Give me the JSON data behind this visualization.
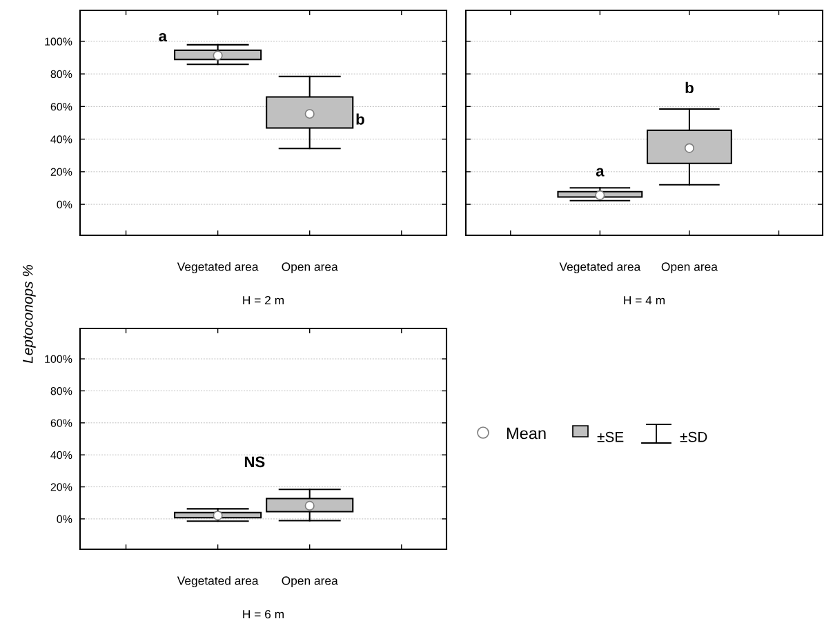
{
  "chart_data": [
    {
      "type": "box",
      "ylabel": "Leptoconops %",
      "xlabel": "H = 2 m",
      "categories": [
        "Vegetated area",
        "Open area"
      ],
      "ylim": [
        -19,
        119
      ],
      "yticks": [
        {
          "value": 0,
          "label": "0%"
        },
        {
          "value": 20,
          "label": "20%"
        },
        {
          "value": 40,
          "label": "40%"
        },
        {
          "value": 60,
          "label": "60%"
        },
        {
          "value": 80,
          "label": "80%"
        },
        {
          "value": 100,
          "label": "100%"
        }
      ],
      "grid": "y",
      "color": "#c0c0c0",
      "boxes": [
        {
          "low": 85.9,
          "q1": 88.9,
          "median": null,
          "q3": 94.5,
          "high": 97.9,
          "mean": 91.3
        },
        {
          "low": 34.3,
          "q1": 46.8,
          "median": null,
          "q3": 65.9,
          "high": 78.4,
          "mean": 55.5
        }
      ],
      "annotations": [
        "a",
        "b"
      ]
    },
    {
      "type": "box",
      "xlabel": "H = 4 m",
      "categories": [
        "Vegetated area",
        "Open area"
      ],
      "ylim": [
        -19,
        119
      ],
      "yticks": [
        {
          "value": 0,
          "label": null
        },
        {
          "value": 20,
          "label": null
        },
        {
          "value": 40,
          "label": null
        },
        {
          "value": 60,
          "label": null
        },
        {
          "value": 80,
          "label": null
        },
        {
          "value": 100,
          "label": null
        }
      ],
      "grid": "y",
      "tick_labels": "x",
      "color": "#c0c0c0",
      "boxes": [
        {
          "low": 2.3,
          "q1": 4.5,
          "median": null,
          "q3": 7.8,
          "high": 10.1,
          "mean": 5.6
        },
        {
          "low": 12.0,
          "q1": 25.1,
          "median": null,
          "q3": 45.4,
          "high": 58.5,
          "mean": 34.5
        }
      ],
      "annotations": [
        "a",
        "b"
      ]
    },
    {
      "type": "box",
      "xlabel": "H = 6 m",
      "categories": [
        "Vegetated area",
        "Open area"
      ],
      "ylim": [
        -19,
        119
      ],
      "yticks": [
        {
          "value": 0,
          "label": "0%"
        },
        {
          "value": 20,
          "label": "20%"
        },
        {
          "value": 40,
          "label": "40%"
        },
        {
          "value": 60,
          "label": "60%"
        },
        {
          "value": 80,
          "label": "80%"
        },
        {
          "value": 100,
          "label": "100%"
        }
      ],
      "grid": "y",
      "color": "#c0c0c0",
      "boxes": [
        {
          "low": -1.4,
          "q1": 0.7,
          "median": null,
          "q3": 3.9,
          "high": 6.3,
          "mean": 2.1
        },
        {
          "low": -1.1,
          "q1": 4.5,
          "median": null,
          "q3": 12.7,
          "high": 18.4,
          "mean": 8.2
        }
      ],
      "annotations": [
        "NS"
      ]
    },
    {
      "type": "other",
      "color": "#c0c0c0",
      "annotations": [
        "Mean",
        "±SE",
        "±SD"
      ]
    }
  ]
}
